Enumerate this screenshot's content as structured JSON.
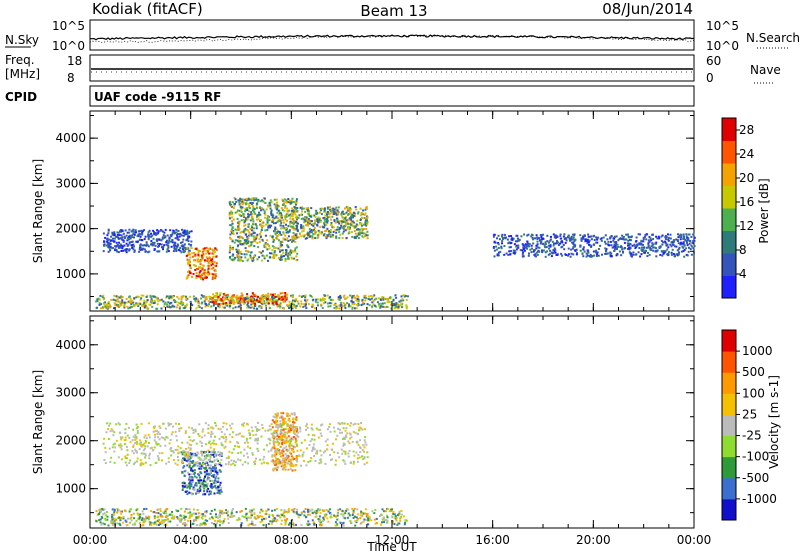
{
  "header": {
    "station": "Kodiak (fitACF)",
    "beam": "Beam 13",
    "date": "08/Jun/2014"
  },
  "strips": {
    "nsky_label": "N.Sky",
    "nsearch_label": "N.Search",
    "nsky_ticks": [
      "10^5",
      "10^0"
    ],
    "nsearch_ticks": [
      "10^5",
      "10^0"
    ],
    "freq_label_line1": "Freq.",
    "freq_label_line2": "[MHz]",
    "freq_ticks": [
      "18",
      "8"
    ],
    "nave_label": "Nave",
    "nave_ticks": [
      "60",
      "0"
    ],
    "cpid_label": "CPID",
    "cpid_text": "UAF code -9115 RF"
  },
  "colors": {
    "power_scale": [
      "#1f1fff",
      "#3355bb",
      "#2f7a7a",
      "#4caf50",
      "#c8c800",
      "#f5a300",
      "#ff5500",
      "#e00000"
    ],
    "velocity_scale": [
      "#e00000",
      "#ff5500",
      "#ff9900",
      "#f5c000",
      "#bbbbbb",
      "#8fdc30",
      "#2e9a3a",
      "#3a6fd0",
      "#1010cc"
    ]
  },
  "chart_data": [
    {
      "type": "heatmap",
      "title": "",
      "xlabel": "",
      "ylabel": "Slant Range [km]",
      "x_ticks": [
        "00:00",
        "04:00",
        "08:00",
        "12:00",
        "16:00",
        "20:00",
        "00:00"
      ],
      "y_ticks": [
        "1000",
        "2000",
        "3000",
        "4000"
      ],
      "xlim_hours": [
        0,
        24
      ],
      "ylim_km": [
        180,
        4600
      ],
      "colorbar_label": "Power [dB]",
      "colorbar_ticks": [
        "4",
        "8",
        "12",
        "16",
        "20",
        "24",
        "28"
      ],
      "colorbar_range": [
        0,
        30
      ],
      "features": [
        {
          "name": "E-region band",
          "time_hours": [
            0.2,
            12.6
          ],
          "range_km": [
            250,
            550
          ],
          "level": "medium"
        },
        {
          "name": "Strong echo 05-07 UT",
          "time_hours": [
            4.8,
            7.8
          ],
          "range_km": [
            350,
            600
          ],
          "level": "high"
        },
        {
          "name": "Scatter 01-04 UT",
          "time_hours": [
            0.5,
            4.0
          ],
          "range_km": [
            1500,
            2000
          ],
          "level": "low"
        },
        {
          "name": "Diagonal echo 03:30-05 UT",
          "time_hours": [
            3.8,
            5.0
          ],
          "range_km": [
            900,
            1600
          ],
          "level": "high"
        },
        {
          "name": "Arc 06-08 UT",
          "time_hours": [
            5.5,
            8.2
          ],
          "range_km": [
            1300,
            2700
          ],
          "level": "medium"
        },
        {
          "name": "Arc 08-11 UT",
          "time_hours": [
            8.0,
            11.0
          ],
          "range_km": [
            1800,
            2500
          ],
          "level": "medium"
        },
        {
          "name": "Night scatter 16-24 UT",
          "time_hours": [
            16.0,
            24.0
          ],
          "range_km": [
            1400,
            1900
          ],
          "level": "low"
        }
      ]
    },
    {
      "type": "heatmap",
      "title": "",
      "xlabel": "Time UT",
      "ylabel": "Slant Range [km]",
      "x_ticks": [
        "00:00",
        "04:00",
        "08:00",
        "12:00",
        "16:00",
        "20:00",
        "00:00"
      ],
      "y_ticks": [
        "1000",
        "2000",
        "3000",
        "4000"
      ],
      "xlim_hours": [
        0,
        24
      ],
      "ylim_km": [
        180,
        4600
      ],
      "colorbar_label": "Velocity [m s-1]",
      "colorbar_ticks": [
        "1000",
        "500",
        "100",
        "25",
        "-25",
        "-100",
        "-500",
        "-1000"
      ],
      "features": [
        {
          "name": "E-region band",
          "time_hours": [
            0.2,
            12.6
          ],
          "range_km": [
            250,
            600
          ],
          "velocity": "mixed"
        },
        {
          "name": "Diagonal echo",
          "time_hours": [
            3.6,
            5.2
          ],
          "range_km": [
            900,
            1800
          ],
          "velocity": "positive"
        },
        {
          "name": "Arc 07-08 UT",
          "time_hours": [
            7.2,
            8.2
          ],
          "range_km": [
            1400,
            2600
          ],
          "velocity": "negative"
        },
        {
          "name": "Scatter",
          "time_hours": [
            0.5,
            11.0
          ],
          "range_km": [
            1500,
            2400
          ],
          "velocity": "near-zero"
        }
      ]
    }
  ]
}
